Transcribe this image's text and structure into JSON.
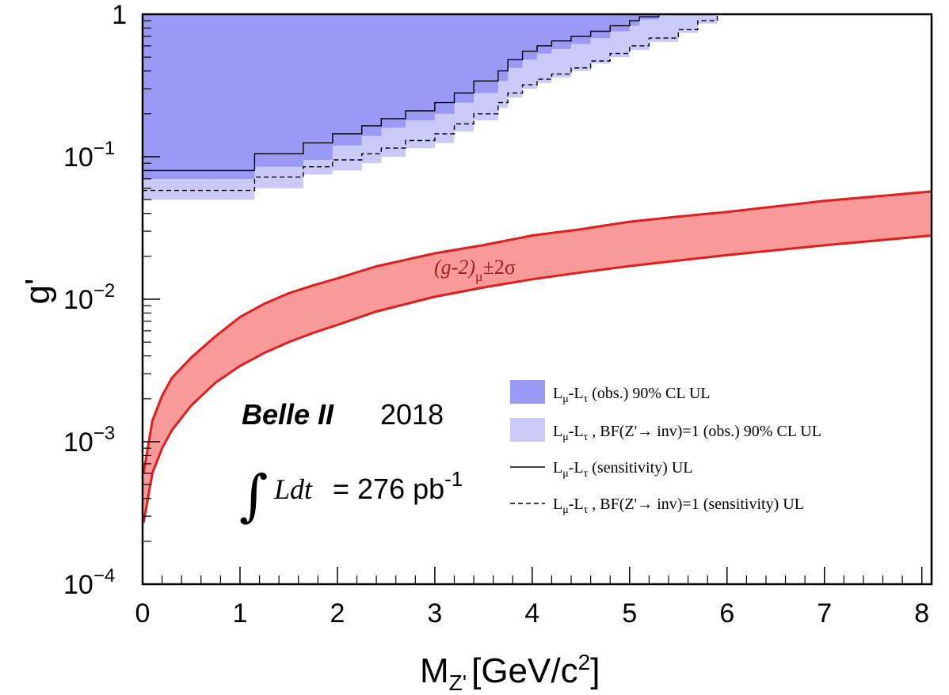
{
  "chart_data": {
    "type": "area",
    "x": {
      "label_main": "M",
      "label_sub": "Z'",
      "label_unit": "[GeV/c",
      "label_unit_sup": "2",
      "label_unit_end": "]",
      "range": [
        0,
        8.1
      ],
      "ticks": [
        "0",
        "1",
        "2",
        "3",
        "4",
        "5",
        "6",
        "7",
        "8"
      ]
    },
    "y": {
      "label": "g'",
      "scale": "log",
      "range": [
        0.0001,
        1
      ],
      "ticks": [
        {
          "value": 1,
          "base": "1",
          "exp": ""
        },
        {
          "value": 0.1,
          "base": "10",
          "exp": "−1"
        },
        {
          "value": 0.01,
          "base": "10",
          "exp": "−2"
        },
        {
          "value": 0.001,
          "base": "10",
          "exp": "−3"
        },
        {
          "value": 0.0001,
          "base": "10",
          "exp": "−4"
        }
      ]
    },
    "band_label": "(g-2)",
    "band_label_sub": "μ",
    "band_label_end": "±2σ",
    "experiment": "Belle II",
    "year": "2018",
    "lumi_ldt": "Ldt",
    "lumi_value": "= 276 pb",
    "lumi_exp": "-1",
    "colors": {
      "obs": "#9a9af5",
      "obs_inv": "#cacaf9",
      "band_fill": "#f99a9a",
      "band_line": "#e11e1e"
    },
    "legend": [
      {
        "style": "box-dark",
        "main": "L",
        "sub1": "μ",
        "mid": "-L",
        "sub2": "τ",
        "rest": " (obs.) 90% CL UL"
      },
      {
        "style": "box-light",
        "main": "L",
        "sub1": "μ",
        "mid": "-L",
        "sub2": "τ",
        "rest": " , BF(Z'→ inv)=1 (obs.) 90% CL UL"
      },
      {
        "style": "solid",
        "main": "L",
        "sub1": "μ",
        "mid": "-L",
        "sub2": "τ",
        "rest": " (sensitivity) UL"
      },
      {
        "style": "dashed",
        "main": "L",
        "sub1": "μ",
        "mid": "-L",
        "sub2": "τ",
        "rest": " , BF(Z'→ inv)=1 (sensitivity) UL"
      }
    ],
    "series": [
      {
        "name": "Lμ-Lτ (obs.) 90% CL UL",
        "kind": "step",
        "x": [
          0,
          1.15,
          1.65,
          1.95,
          2.25,
          2.45,
          2.7,
          3.0,
          3.2,
          3.4,
          3.65,
          3.75,
          3.9,
          4.05,
          4.2,
          4.4,
          4.6,
          4.8,
          5.0,
          5.1,
          5.3
        ],
        "y": [
          0.07,
          0.085,
          0.095,
          0.12,
          0.14,
          0.16,
          0.18,
          0.2,
          0.24,
          0.28,
          0.34,
          0.42,
          0.48,
          0.53,
          0.57,
          0.62,
          0.68,
          0.76,
          0.83,
          0.92,
          1.0
        ]
      },
      {
        "name": "Lμ-Lτ , BF(Z'→ inv)=1 (obs.) 90% CL UL",
        "kind": "step",
        "x": [
          0,
          1.15,
          1.65,
          1.95,
          2.25,
          2.45,
          2.7,
          3.0,
          3.2,
          3.4,
          3.65,
          3.75,
          3.9,
          4.05,
          4.2,
          4.4,
          4.6,
          4.8,
          5.0,
          5.2,
          5.5,
          5.7,
          5.9
        ],
        "y": [
          0.05,
          0.06,
          0.075,
          0.08,
          0.09,
          0.1,
          0.115,
          0.125,
          0.15,
          0.18,
          0.22,
          0.26,
          0.3,
          0.33,
          0.36,
          0.4,
          0.45,
          0.5,
          0.56,
          0.64,
          0.74,
          0.86,
          1.0
        ]
      },
      {
        "name": "Lμ-Lτ (sensitivity) UL",
        "kind": "step",
        "x": [
          0,
          1.15,
          1.65,
          1.95,
          2.25,
          2.45,
          2.7,
          3.0,
          3.2,
          3.4,
          3.65,
          3.75,
          3.9,
          4.05,
          4.2,
          4.4,
          4.6,
          4.8,
          5.0,
          5.1,
          5.3
        ],
        "y": [
          0.08,
          0.105,
          0.125,
          0.145,
          0.165,
          0.185,
          0.21,
          0.24,
          0.28,
          0.34,
          0.4,
          0.48,
          0.55,
          0.6,
          0.65,
          0.7,
          0.76,
          0.83,
          0.9,
          0.96,
          1.0
        ]
      },
      {
        "name": "Lμ-Lτ , BF(Z'→ inv)=1 (sensitivity) UL",
        "kind": "step",
        "x": [
          0,
          1.15,
          1.65,
          1.95,
          2.25,
          2.45,
          2.7,
          3.0,
          3.2,
          3.4,
          3.65,
          3.75,
          3.9,
          4.05,
          4.2,
          4.4,
          4.6,
          4.8,
          5.0,
          5.2,
          5.5,
          5.7,
          5.9
        ],
        "y": [
          0.058,
          0.072,
          0.085,
          0.095,
          0.105,
          0.115,
          0.13,
          0.145,
          0.17,
          0.2,
          0.24,
          0.28,
          0.32,
          0.35,
          0.38,
          0.42,
          0.47,
          0.53,
          0.6,
          0.68,
          0.78,
          0.9,
          1.0
        ]
      },
      {
        "name": "(g-2)μ ±2σ",
        "kind": "band",
        "x": [
          0.01,
          0.1,
          0.2,
          0.3,
          0.5,
          0.75,
          1.0,
          1.25,
          1.5,
          1.75,
          2.0,
          2.4,
          3.0,
          3.5,
          4.0,
          4.5,
          5.0,
          5.5,
          6.0,
          7.0,
          8.1
        ],
        "upper": [
          0.0006,
          0.0014,
          0.0021,
          0.0028,
          0.0039,
          0.0055,
          0.0075,
          0.0093,
          0.011,
          0.0125,
          0.014,
          0.017,
          0.021,
          0.024,
          0.028,
          0.031,
          0.035,
          0.038,
          0.041,
          0.049,
          0.057
        ],
        "lower": [
          0.00027,
          0.0006,
          0.0009,
          0.0012,
          0.0018,
          0.0026,
          0.0034,
          0.0042,
          0.005,
          0.0058,
          0.0066,
          0.0082,
          0.0104,
          0.0121,
          0.0138,
          0.0154,
          0.0171,
          0.0187,
          0.0204,
          0.0239,
          0.028
        ]
      }
    ]
  }
}
